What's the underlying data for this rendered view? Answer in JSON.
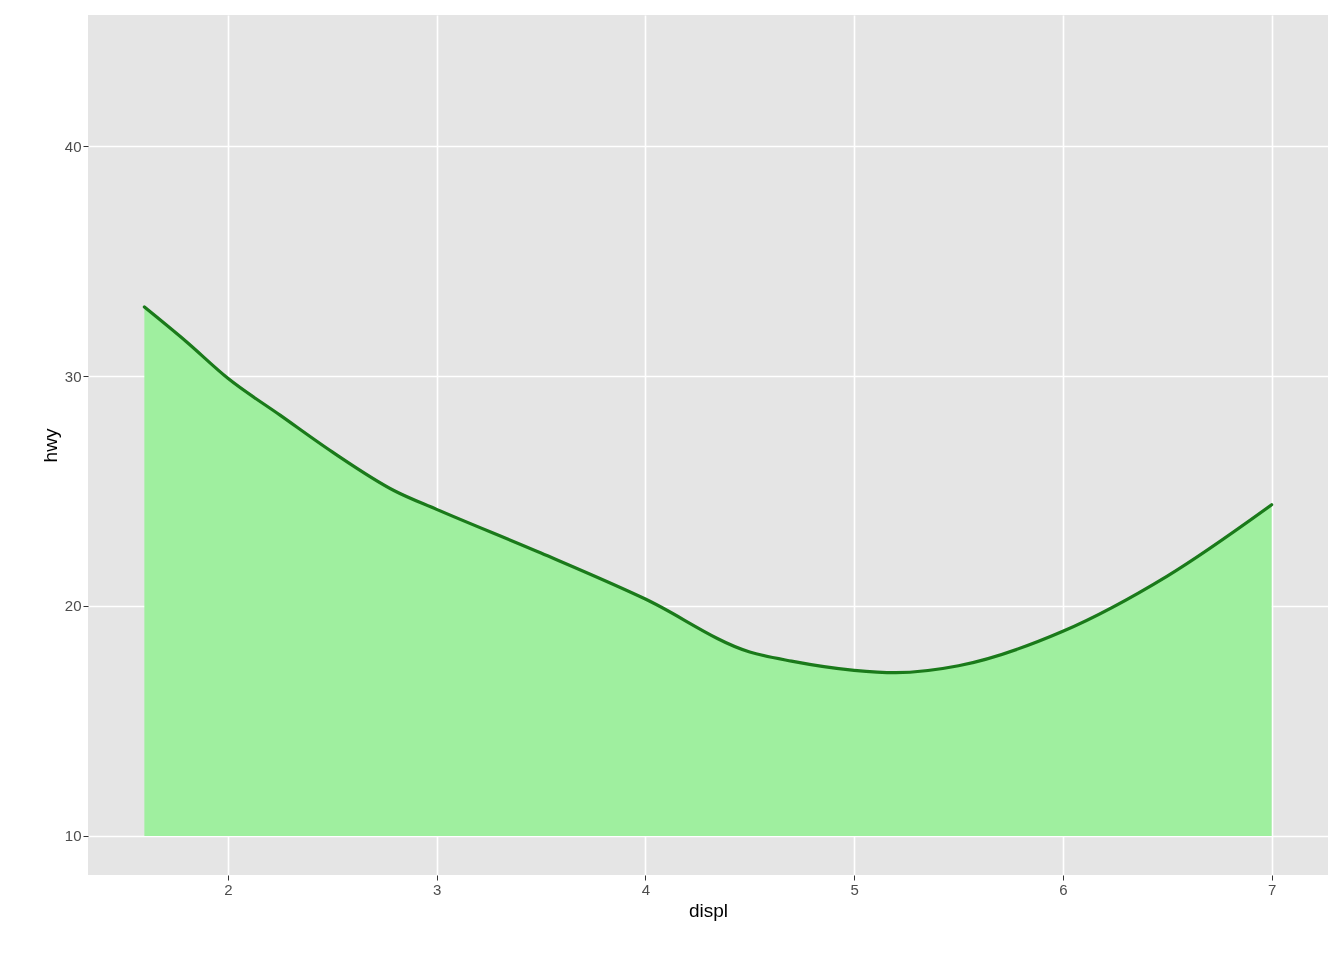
{
  "chart_data": {
    "type": "line",
    "xlabel": "displ",
    "ylabel": "hwy",
    "x": [
      1.6,
      1.8,
      2,
      2.25,
      2.5,
      2.8,
      3,
      3.5,
      4,
      4.5,
      4.7,
      5,
      5.2,
      5.5,
      6,
      6.5,
      7
    ],
    "series": [
      {
        "color": "#1a7a1a",
        "values": [
          33.0,
          31.5,
          29.9,
          28.3,
          26.7,
          25.0,
          24.2,
          22.3,
          20.3,
          18.0,
          17.6,
          17.2,
          17.1,
          17.4,
          18.9,
          21.3,
          24.4
        ],
        "lower": [
          10,
          10,
          10,
          10,
          10,
          10,
          10,
          10,
          10,
          10,
          10,
          10,
          10,
          10,
          10,
          10,
          10
        ],
        "upper": [
          33.0,
          31.5,
          29.9,
          28.3,
          26.7,
          25.0,
          24.2,
          22.3,
          20.3,
          18.0,
          17.6,
          17.2,
          17.1,
          17.4,
          18.9,
          21.3,
          24.4
        ]
      }
    ],
    "xlim": [
      1.33,
      7.27
    ],
    "xticks": [
      {
        "value": 2,
        "label": "2"
      },
      {
        "value": 3,
        "label": "3"
      },
      {
        "value": 4,
        "label": "4"
      },
      {
        "value": 5,
        "label": "5"
      },
      {
        "value": 6,
        "label": "6"
      },
      {
        "value": 7,
        "label": "7"
      }
    ],
    "ylim": [
      8.3,
      45.7
    ],
    "yticks": [
      10,
      20,
      30,
      40
    ],
    "grid": true
  }
}
